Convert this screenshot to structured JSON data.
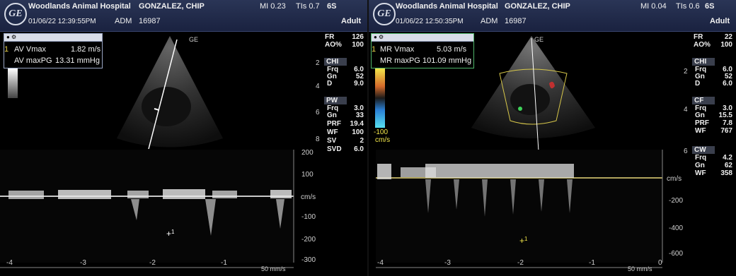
{
  "left": {
    "hospital": "Woodlands Animal Hospital",
    "patient": "GONZALEZ, CHIP",
    "datetime": "01/06/22 12:39:55PM",
    "adm_label": "ADM",
    "id": "16987",
    "mi": "MI 0.23",
    "tis": "TIs 0.7",
    "probe": "6S",
    "mode": "Adult",
    "meas_index": "1",
    "meas1_label": "AV Vmax",
    "meas1_value": "1.82 m/s",
    "meas2_label": "AV maxPG",
    "meas2_value": "13.31 mmHg",
    "params": [
      {
        "k": "FR",
        "v": "126"
      },
      {
        "k": "AO%",
        "v": "100"
      }
    ],
    "chi_head": "CHI",
    "chi": [
      {
        "k": "Frq",
        "v": "6.0"
      },
      {
        "k": "Gn",
        "v": "52"
      },
      {
        "k": "D",
        "v": "9.0"
      }
    ],
    "pw_head": "PW",
    "pw": [
      {
        "k": "Frq",
        "v": "3.0"
      },
      {
        "k": "Gn",
        "v": "33"
      },
      {
        "k": "PRF",
        "v": "19.4"
      },
      {
        "k": "WF",
        "v": "100"
      },
      {
        "k": "SV",
        "v": "2"
      },
      {
        "k": "SVD",
        "v": "6.0"
      }
    ],
    "depth_ticks": [
      "2",
      "4",
      "6",
      "8"
    ],
    "vel_ticks": [
      "200",
      "100",
      "cm/s",
      "-100",
      "-200",
      "-300"
    ],
    "time_ticks": [
      "-4",
      "-3",
      "-2",
      "-1"
    ],
    "sweep": "50 mm/s"
  },
  "right": {
    "hospital": "Woodlands Animal Hospital",
    "patient": "GONZALEZ, CHIP",
    "datetime": "01/06/22 12:50:35PM",
    "adm_label": "ADM",
    "id": "16987",
    "mi": "MI 0.04",
    "tis": "TIs 0.6",
    "probe": "6S",
    "mode": "Adult",
    "meas_index": "1",
    "meas1_label": "MR Vmax",
    "meas1_value": "5.03 m/s",
    "meas2_label": "MR maxPG",
    "meas2_value": "101.09 mmHg",
    "color_bar_min": "-100",
    "color_bar_unit": "cm/s",
    "params": [
      {
        "k": "FR",
        "v": "22"
      },
      {
        "k": "AO%",
        "v": "100"
      }
    ],
    "chi_head": "CHI",
    "chi": [
      {
        "k": "Frq",
        "v": "6.0"
      },
      {
        "k": "Gn",
        "v": "52"
      },
      {
        "k": "D",
        "v": "6.0"
      }
    ],
    "cf_head": "CF",
    "cf": [
      {
        "k": "Frq",
        "v": "3.0"
      },
      {
        "k": "Gn",
        "v": "15.5"
      },
      {
        "k": "PRF",
        "v": "7.8"
      },
      {
        "k": "WF",
        "v": "767"
      }
    ],
    "cw_head": "CW",
    "cw": [
      {
        "k": "Frq",
        "v": "4.2"
      },
      {
        "k": "Gn",
        "v": "62"
      },
      {
        "k": "WF",
        "v": "358"
      }
    ],
    "depth_ticks": [
      "2",
      "4",
      "6"
    ],
    "vel_ticks": [
      "cm/s",
      "-200",
      "-400",
      "-600"
    ],
    "time_ticks": [
      "-4",
      "-3",
      "-2",
      "-1",
      "0"
    ],
    "sweep": "50 mm/s"
  }
}
